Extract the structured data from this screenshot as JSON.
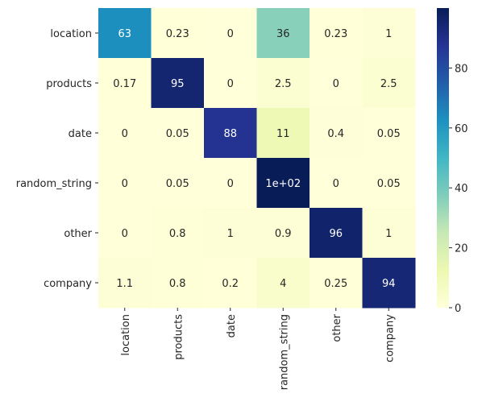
{
  "chart_data": {
    "type": "heatmap",
    "title": "",
    "xlabel": "",
    "ylabel": "",
    "rows": [
      "location",
      "products",
      "date",
      "random_string",
      "other",
      "company"
    ],
    "cols": [
      "location",
      "products",
      "date",
      "random_string",
      "other",
      "company"
    ],
    "values": [
      [
        63,
        0.23,
        0,
        36,
        0.23,
        1
      ],
      [
        0.17,
        95,
        0,
        2.5,
        0,
        2.5
      ],
      [
        0,
        0.05,
        88,
        11,
        0.4,
        0.05
      ],
      [
        0,
        0.05,
        0,
        100,
        0,
        0.05
      ],
      [
        0,
        0.8,
        1,
        0.9,
        96,
        1
      ],
      [
        1.1,
        0.8,
        0.2,
        4,
        0.25,
        94
      ]
    ],
    "annotations": [
      [
        "63",
        "0.23",
        "0",
        "36",
        "0.23",
        "1"
      ],
      [
        "0.17",
        "95",
        "0",
        "2.5",
        "0",
        "2.5"
      ],
      [
        "0",
        "0.05",
        "88",
        "11",
        "0.4",
        "0.05"
      ],
      [
        "0",
        "0.05",
        "0",
        "1e+02",
        "0",
        "0.05"
      ],
      [
        "0",
        "0.8",
        "1",
        "0.9",
        "96",
        "1"
      ],
      [
        "1.1",
        "0.8",
        "0.2",
        "4",
        "0.25",
        "94"
      ]
    ],
    "colormap": "YlGnBu",
    "colormap_stops": [
      "#ffffd9",
      "#edf8b1",
      "#c7e9b4",
      "#7fcdbb",
      "#41b6c4",
      "#1d91c0",
      "#225ea8",
      "#253494",
      "#081d58"
    ],
    "vmin": 0,
    "vmax": 100,
    "colorbar": {
      "ticks": [
        0,
        20,
        40,
        60,
        80
      ],
      "tick_labels": [
        "0",
        "20",
        "40",
        "60",
        "80"
      ]
    },
    "grid": false,
    "legend": "colorbar-right"
  }
}
